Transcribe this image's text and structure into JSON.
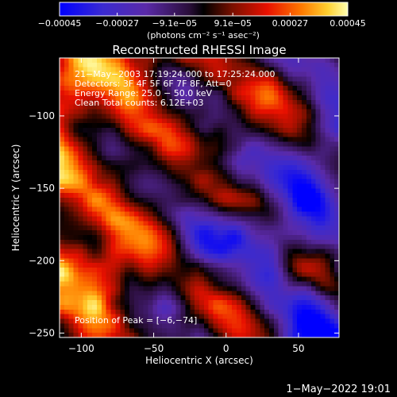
{
  "chart_data": {
    "type": "heatmap",
    "title": "Reconstructed RHESSI Image",
    "xlabel": "Heliocentric X (arcsec)",
    "ylabel": "Heliocentric Y (arcsec)",
    "xlim": [
      -115,
      78
    ],
    "ylim": [
      -253,
      -60
    ],
    "x_ticks": [
      -100,
      -50,
      0,
      50
    ],
    "x_tick_labels": [
      "−100",
      "−50",
      "0",
      "50"
    ],
    "y_ticks": [
      -250,
      -200,
      -150,
      -100
    ],
    "y_tick_labels": [
      "−250",
      "−200",
      "−150",
      "−100"
    ],
    "colorbar": {
      "range": [
        -0.00045,
        0.00045
      ],
      "ticks": [
        -0.00045,
        -0.00027,
        -9.1e-05,
        9.1e-05,
        0.00027,
        0.00045
      ],
      "tick_labels": [
        "−0.00045",
        "−0.00027",
        "−9.1e−05",
        "9.1e−05",
        "0.00027",
        "0.00045"
      ],
      "units_label": "(photons cm⁻² s⁻¹ asec⁻²)",
      "colors": [
        "#0000ff",
        "#5a2aa8",
        "#3a1a52",
        "#000000",
        "#7a1000",
        "#e81000",
        "#ff7a00",
        "#ffd030",
        "#ffffb0"
      ]
    },
    "annotations": [
      "21−May−2003 17:19:24.000 to 17:25:24.000",
      "Detectors: 3F 4F 5F 6F 7F 8F, Att=0",
      "Energy Range: 25.0 − 50.0 keV",
      "Clean     Total counts: 6.12E+03"
    ],
    "peak_label": "Position of Peak = [−6,−74]",
    "peak_position": [
      -6,
      -74
    ],
    "pattern": {
      "description_for_render_only": false,
      "ridge_direction_deg": -40,
      "bright_region": "upper-left",
      "dim_region": "lower-right"
    }
  },
  "footer": {
    "timestamp": "1−May−2022 19:01"
  }
}
